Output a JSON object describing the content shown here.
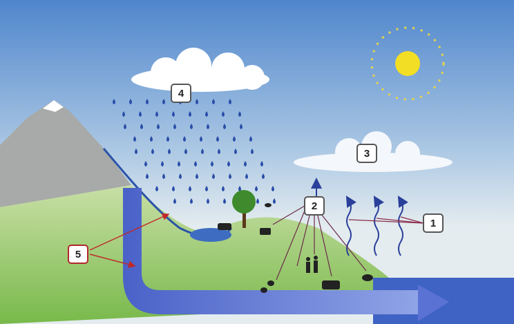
{
  "labels": [
    {
      "text": "1"
    },
    {
      "text": "2"
    },
    {
      "text": "3"
    },
    {
      "text": "4"
    },
    {
      "text": "5"
    }
  ]
}
